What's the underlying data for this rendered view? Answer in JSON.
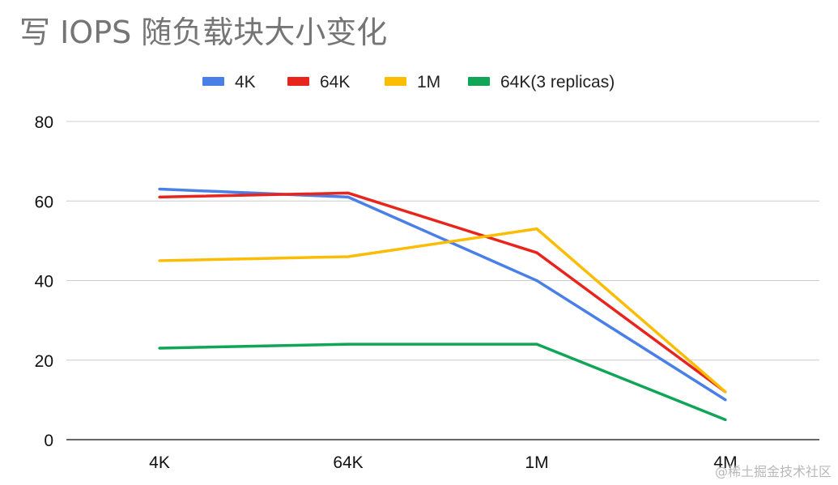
{
  "chart_data": {
    "type": "line",
    "title": "写 IOPS 随负载块大小变化",
    "xlabel": "",
    "ylabel": "",
    "categories": [
      "4K",
      "64K",
      "1M",
      "4M"
    ],
    "ylim": [
      0,
      80
    ],
    "yticks": [
      0,
      20,
      40,
      60,
      80
    ],
    "grid": true,
    "legend_position": "top",
    "series": [
      {
        "name": "4K",
        "color": "#4a7fe8",
        "values": [
          63,
          61,
          40,
          10
        ]
      },
      {
        "name": "64K",
        "color": "#e8251c",
        "values": [
          61,
          62,
          47,
          12
        ]
      },
      {
        "name": "1M",
        "color": "#fbbc04",
        "values": [
          45,
          46,
          53,
          12
        ]
      },
      {
        "name": "64K(3 replicas)",
        "color": "#11a557",
        "values": [
          23,
          24,
          24,
          5
        ]
      }
    ]
  },
  "watermark": "@稀土掘金技术社区"
}
